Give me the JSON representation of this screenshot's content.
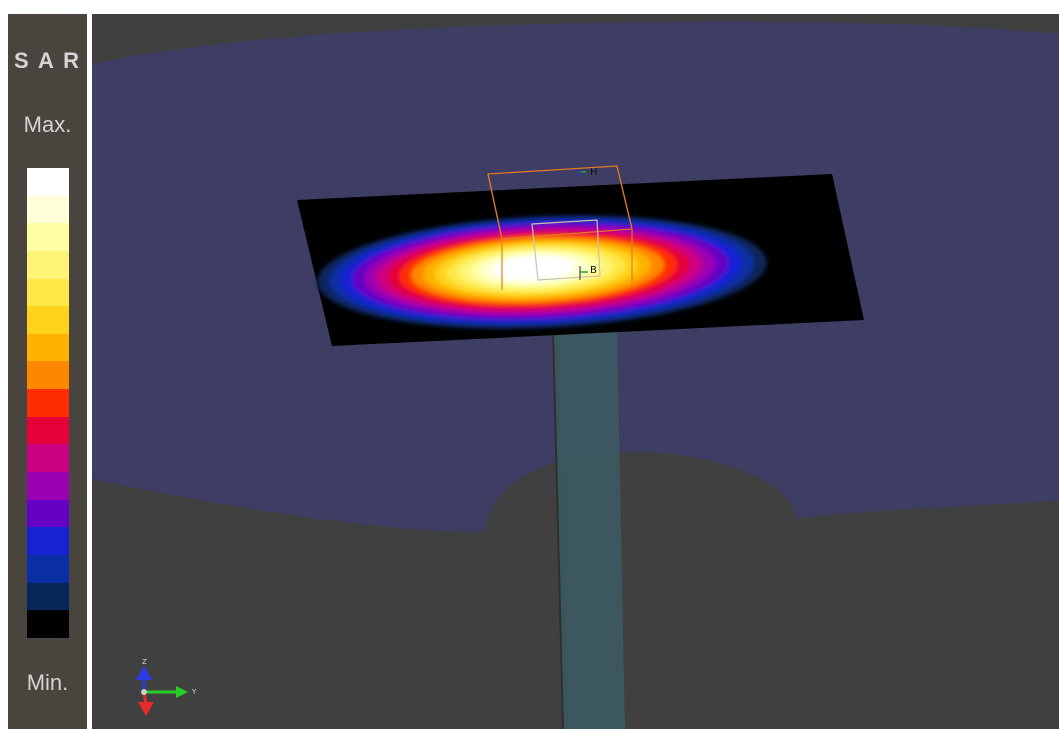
{
  "legend": {
    "title": "S A R",
    "max_label": "Max.",
    "min_label": "Min.",
    "colors": [
      "#ffffff",
      "#ffffd8",
      "#ffffa8",
      "#fff476",
      "#ffe847",
      "#ffd21c",
      "#ffb200",
      "#ff8700",
      "#ff2e00",
      "#e40038",
      "#cc0082",
      "#9b00b2",
      "#6600c4",
      "#1822d5",
      "#0a2ea4",
      "#08265a",
      "#000000"
    ]
  },
  "viewport": {
    "sensor_markers": [
      "H",
      "B"
    ],
    "axis_triad": {
      "x_color": "#e82a2a",
      "y_color": "#26cf26",
      "z_color": "#2b3ae8",
      "y_label": "Y",
      "z_label": "Z"
    },
    "colors": {
      "background": "#404040",
      "phantom_shell": "#3e3d63",
      "probe_shaft": "#3c5c63",
      "probe_box": "#e27b22"
    }
  }
}
